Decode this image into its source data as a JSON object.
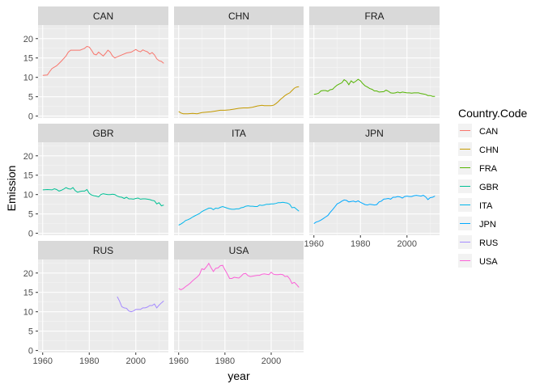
{
  "chart_data": {
    "type": "line",
    "facet": "Country.Code",
    "xlabel": "year",
    "ylabel": "Emission",
    "xlim": [
      1958,
      2014
    ],
    "ylim": [
      -0.5,
      23.5
    ],
    "x_ticks": [
      1960,
      1980,
      2000
    ],
    "y_ticks": [
      0,
      5,
      10,
      15,
      20
    ],
    "grid": true,
    "legend": {
      "title": "Country.Code",
      "placement": "right"
    },
    "series": [
      {
        "name": "CAN",
        "color": "#F8766D",
        "points": [
          [
            1960,
            10.5
          ],
          [
            1962,
            10.6
          ],
          [
            1963,
            11.5
          ],
          [
            1964,
            12.3
          ],
          [
            1966,
            13.0
          ],
          [
            1968,
            14.2
          ],
          [
            1970,
            15.5
          ],
          [
            1971,
            16.5
          ],
          [
            1972,
            17.0
          ],
          [
            1974,
            17.0
          ],
          [
            1976,
            17.0
          ],
          [
            1978,
            17.5
          ],
          [
            1979,
            18.0
          ],
          [
            1980,
            17.8
          ],
          [
            1981,
            17.0
          ],
          [
            1982,
            16.0
          ],
          [
            1983,
            15.8
          ],
          [
            1984,
            16.5
          ],
          [
            1985,
            16.0
          ],
          [
            1986,
            15.5
          ],
          [
            1987,
            16.2
          ],
          [
            1988,
            17.0
          ],
          [
            1989,
            16.5
          ],
          [
            1990,
            15.5
          ],
          [
            1991,
            15.0
          ],
          [
            1992,
            15.3
          ],
          [
            1994,
            15.8
          ],
          [
            1996,
            16.3
          ],
          [
            1998,
            16.5
          ],
          [
            2000,
            17.2
          ],
          [
            2001,
            16.8
          ],
          [
            2002,
            16.6
          ],
          [
            2003,
            17.1
          ],
          [
            2004,
            16.8
          ],
          [
            2005,
            16.6
          ],
          [
            2006,
            16.0
          ],
          [
            2007,
            16.4
          ],
          [
            2008,
            15.8
          ],
          [
            2009,
            14.8
          ],
          [
            2010,
            14.3
          ],
          [
            2011,
            14.1
          ],
          [
            2012,
            13.6
          ]
        ]
      },
      {
        "name": "CHN",
        "color": "#C49A00",
        "points": [
          [
            1960,
            1.2
          ],
          [
            1961,
            0.8
          ],
          [
            1962,
            0.6
          ],
          [
            1964,
            0.6
          ],
          [
            1966,
            0.7
          ],
          [
            1968,
            0.6
          ],
          [
            1970,
            0.9
          ],
          [
            1972,
            1.0
          ],
          [
            1974,
            1.1
          ],
          [
            1976,
            1.3
          ],
          [
            1978,
            1.5
          ],
          [
            1980,
            1.5
          ],
          [
            1982,
            1.6
          ],
          [
            1984,
            1.8
          ],
          [
            1986,
            2.0
          ],
          [
            1988,
            2.1
          ],
          [
            1990,
            2.1
          ],
          [
            1992,
            2.3
          ],
          [
            1994,
            2.6
          ],
          [
            1996,
            2.8
          ],
          [
            1997,
            2.7
          ],
          [
            1998,
            2.7
          ],
          [
            2000,
            2.7
          ],
          [
            2001,
            2.8
          ],
          [
            2002,
            3.2
          ],
          [
            2003,
            3.7
          ],
          [
            2004,
            4.3
          ],
          [
            2005,
            4.8
          ],
          [
            2006,
            5.3
          ],
          [
            2007,
            5.7
          ],
          [
            2008,
            6.0
          ],
          [
            2009,
            6.6
          ],
          [
            2010,
            7.2
          ],
          [
            2011,
            7.5
          ],
          [
            2012,
            7.6
          ]
        ]
      },
      {
        "name": "FRA",
        "color": "#53B400",
        "points": [
          [
            1960,
            5.6
          ],
          [
            1961,
            5.7
          ],
          [
            1962,
            5.9
          ],
          [
            1963,
            6.5
          ],
          [
            1964,
            6.6
          ],
          [
            1965,
            6.6
          ],
          [
            1966,
            6.4
          ],
          [
            1967,
            6.8
          ],
          [
            1968,
            6.9
          ],
          [
            1969,
            7.5
          ],
          [
            1970,
            8.0
          ],
          [
            1971,
            8.3
          ],
          [
            1972,
            8.6
          ],
          [
            1973,
            9.4
          ],
          [
            1974,
            9.0
          ],
          [
            1975,
            8.1
          ],
          [
            1976,
            9.1
          ],
          [
            1977,
            8.6
          ],
          [
            1978,
            9.0
          ],
          [
            1979,
            9.5
          ],
          [
            1980,
            9.1
          ],
          [
            1981,
            8.4
          ],
          [
            1982,
            7.8
          ],
          [
            1983,
            7.5
          ],
          [
            1984,
            7.1
          ],
          [
            1985,
            6.9
          ],
          [
            1986,
            6.5
          ],
          [
            1987,
            6.5
          ],
          [
            1988,
            6.2
          ],
          [
            1990,
            6.3
          ],
          [
            1991,
            6.7
          ],
          [
            1992,
            6.4
          ],
          [
            1993,
            6.0
          ],
          [
            1994,
            5.9
          ],
          [
            1995,
            6.0
          ],
          [
            1996,
            6.2
          ],
          [
            1997,
            6.0
          ],
          [
            1998,
            6.2
          ],
          [
            1999,
            6.1
          ],
          [
            2000,
            6.0
          ],
          [
            2001,
            6.0
          ],
          [
            2002,
            5.9
          ],
          [
            2003,
            6.0
          ],
          [
            2004,
            6.0
          ],
          [
            2005,
            6.0
          ],
          [
            2006,
            5.8
          ],
          [
            2007,
            5.7
          ],
          [
            2008,
            5.6
          ],
          [
            2009,
            5.3
          ],
          [
            2010,
            5.3
          ],
          [
            2011,
            5.1
          ],
          [
            2012,
            5.1
          ]
        ]
      },
      {
        "name": "GBR",
        "color": "#00C094",
        "points": [
          [
            1960,
            11.2
          ],
          [
            1962,
            11.3
          ],
          [
            1964,
            11.2
          ],
          [
            1965,
            11.5
          ],
          [
            1966,
            11.3
          ],
          [
            1967,
            10.9
          ],
          [
            1968,
            11.1
          ],
          [
            1969,
            11.4
          ],
          [
            1970,
            11.8
          ],
          [
            1971,
            11.5
          ],
          [
            1972,
            11.4
          ],
          [
            1973,
            11.8
          ],
          [
            1974,
            11.0
          ],
          [
            1975,
            10.6
          ],
          [
            1976,
            10.8
          ],
          [
            1977,
            10.9
          ],
          [
            1978,
            10.9
          ],
          [
            1979,
            11.3
          ],
          [
            1980,
            10.3
          ],
          [
            1981,
            9.9
          ],
          [
            1982,
            9.7
          ],
          [
            1983,
            9.6
          ],
          [
            1984,
            9.4
          ],
          [
            1985,
            10.0
          ],
          [
            1986,
            10.2
          ],
          [
            1987,
            10.1
          ],
          [
            1988,
            10.0
          ],
          [
            1989,
            10.0
          ],
          [
            1990,
            10.1
          ],
          [
            1991,
            10.0
          ],
          [
            1992,
            9.6
          ],
          [
            1993,
            9.4
          ],
          [
            1994,
            9.3
          ],
          [
            1995,
            9.0
          ],
          [
            1996,
            9.3
          ],
          [
            1997,
            8.9
          ],
          [
            1998,
            8.9
          ],
          [
            1999,
            8.8
          ],
          [
            2000,
            9.0
          ],
          [
            2001,
            9.1
          ],
          [
            2002,
            8.8
          ],
          [
            2003,
            8.9
          ],
          [
            2004,
            8.9
          ],
          [
            2005,
            8.8
          ],
          [
            2006,
            8.7
          ],
          [
            2007,
            8.5
          ],
          [
            2008,
            8.4
          ],
          [
            2009,
            7.6
          ],
          [
            2010,
            7.9
          ],
          [
            2011,
            7.1
          ],
          [
            2012,
            7.3
          ]
        ]
      },
      {
        "name": "ITA",
        "color": "#00B6EB",
        "points": [
          [
            1960,
            2.1
          ],
          [
            1961,
            2.4
          ],
          [
            1962,
            2.8
          ],
          [
            1963,
            3.3
          ],
          [
            1964,
            3.5
          ],
          [
            1965,
            3.8
          ],
          [
            1966,
            4.2
          ],
          [
            1967,
            4.5
          ],
          [
            1968,
            4.8
          ],
          [
            1969,
            5.1
          ],
          [
            1970,
            5.6
          ],
          [
            1971,
            5.9
          ],
          [
            1972,
            6.2
          ],
          [
            1973,
            6.5
          ],
          [
            1974,
            6.5
          ],
          [
            1975,
            6.1
          ],
          [
            1976,
            6.5
          ],
          [
            1977,
            6.4
          ],
          [
            1978,
            6.7
          ],
          [
            1979,
            6.9
          ],
          [
            1980,
            6.7
          ],
          [
            1981,
            6.5
          ],
          [
            1982,
            6.3
          ],
          [
            1983,
            6.2
          ],
          [
            1984,
            6.2
          ],
          [
            1985,
            6.3
          ],
          [
            1986,
            6.3
          ],
          [
            1987,
            6.6
          ],
          [
            1988,
            6.7
          ],
          [
            1989,
            7.0
          ],
          [
            1990,
            7.1
          ],
          [
            1991,
            7.0
          ],
          [
            1992,
            7.0
          ],
          [
            1993,
            6.9
          ],
          [
            1994,
            6.9
          ],
          [
            1995,
            7.3
          ],
          [
            1996,
            7.2
          ],
          [
            1997,
            7.3
          ],
          [
            1998,
            7.5
          ],
          [
            1999,
            7.5
          ],
          [
            2000,
            7.6
          ],
          [
            2001,
            7.6
          ],
          [
            2002,
            7.7
          ],
          [
            2003,
            7.9
          ],
          [
            2004,
            7.9
          ],
          [
            2005,
            8.0
          ],
          [
            2006,
            7.9
          ],
          [
            2007,
            7.8
          ],
          [
            2008,
            7.5
          ],
          [
            2009,
            6.6
          ],
          [
            2010,
            6.7
          ],
          [
            2011,
            6.2
          ],
          [
            2012,
            5.7
          ]
        ]
      },
      {
        "name": "JPN",
        "color": "#A58AFF",
        "points": []
      },
      {
        "name": "RUS",
        "color": "#A58AFF",
        "points": [
          [
            1992,
            13.9
          ],
          [
            1993,
            12.8
          ],
          [
            1994,
            11.3
          ],
          [
            1995,
            11.0
          ],
          [
            1996,
            10.9
          ],
          [
            1997,
            10.2
          ],
          [
            1998,
            10.0
          ],
          [
            1999,
            10.2
          ],
          [
            2000,
            10.6
          ],
          [
            2001,
            10.6
          ],
          [
            2002,
            10.6
          ],
          [
            2003,
            11.0
          ],
          [
            2004,
            11.0
          ],
          [
            2005,
            11.2
          ],
          [
            2006,
            11.6
          ],
          [
            2007,
            11.6
          ],
          [
            2008,
            12.0
          ],
          [
            2009,
            11.0
          ],
          [
            2010,
            11.7
          ],
          [
            2011,
            12.3
          ],
          [
            2012,
            12.8
          ]
        ]
      },
      {
        "name": "USA",
        "color": "#FB61D7",
        "points": [
          [
            1960,
            16.0
          ],
          [
            1961,
            15.7
          ],
          [
            1962,
            16.0
          ],
          [
            1963,
            16.5
          ],
          [
            1964,
            16.9
          ],
          [
            1965,
            17.4
          ],
          [
            1966,
            18.0
          ],
          [
            1967,
            18.5
          ],
          [
            1968,
            19.0
          ],
          [
            1969,
            19.6
          ],
          [
            1970,
            21.1
          ],
          [
            1971,
            20.9
          ],
          [
            1972,
            21.6
          ],
          [
            1973,
            22.5
          ],
          [
            1974,
            21.4
          ],
          [
            1975,
            20.4
          ],
          [
            1976,
            21.2
          ],
          [
            1977,
            21.3
          ],
          [
            1978,
            21.9
          ],
          [
            1979,
            22.0
          ],
          [
            1980,
            20.8
          ],
          [
            1981,
            19.8
          ],
          [
            1982,
            18.6
          ],
          [
            1983,
            18.6
          ],
          [
            1984,
            18.9
          ],
          [
            1985,
            18.8
          ],
          [
            1986,
            18.7
          ],
          [
            1987,
            19.2
          ],
          [
            1988,
            19.8
          ],
          [
            1989,
            19.9
          ],
          [
            1990,
            19.3
          ],
          [
            1991,
            19.1
          ],
          [
            1992,
            19.2
          ],
          [
            1993,
            19.3
          ],
          [
            1994,
            19.4
          ],
          [
            1995,
            19.4
          ],
          [
            1996,
            19.7
          ],
          [
            1997,
            19.8
          ],
          [
            1998,
            19.7
          ],
          [
            1999,
            19.6
          ],
          [
            2000,
            20.2
          ],
          [
            2001,
            19.7
          ],
          [
            2002,
            19.6
          ],
          [
            2003,
            19.6
          ],
          [
            2004,
            19.7
          ],
          [
            2005,
            19.6
          ],
          [
            2006,
            19.1
          ],
          [
            2007,
            19.2
          ],
          [
            2008,
            18.5
          ],
          [
            2009,
            17.3
          ],
          [
            2010,
            17.6
          ],
          [
            2011,
            17.0
          ],
          [
            2012,
            16.3
          ]
        ]
      }
    ]
  }
}
